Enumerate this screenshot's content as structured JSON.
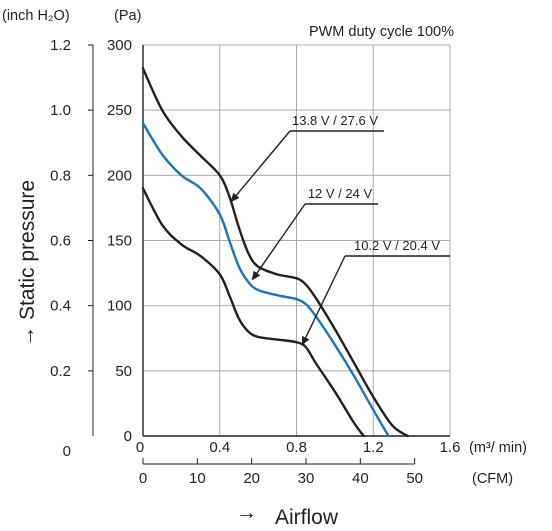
{
  "chart_data": {
    "type": "line",
    "title": "PWM duty cycle 100%",
    "x_axis": {
      "primary_unit": "(m³/ min)",
      "primary_ticks": [
        "0",
        "0.4",
        "0.8",
        "1.2",
        "1.6"
      ],
      "primary_range": [
        0,
        1.6
      ],
      "secondary_unit": "(CFM)",
      "secondary_ticks": [
        "0",
        "10",
        "20",
        "30",
        "40",
        "50"
      ],
      "label": "Airflow",
      "label_arrow": "→"
    },
    "y_axis": {
      "primary_unit": "(Pa)",
      "primary_ticks": [
        "0",
        "50",
        "100",
        "150",
        "200",
        "250",
        "300"
      ],
      "primary_range": [
        0,
        300
      ],
      "secondary_unit": "(inch H₂O)",
      "secondary_ticks": [
        "0",
        "0.2",
        "0.4",
        "0.6",
        "0.8",
        "1.0",
        "1.2"
      ],
      "label": "Static pressure",
      "label_arrow": "→"
    },
    "grid": true,
    "series": [
      {
        "name": "13.8 V / 27.6 V",
        "color": "#231f20",
        "points": [
          [
            0,
            282
          ],
          [
            0.1,
            250
          ],
          [
            0.2,
            230
          ],
          [
            0.3,
            215
          ],
          [
            0.4,
            200
          ],
          [
            0.45,
            184
          ],
          [
            0.5,
            160
          ],
          [
            0.55,
            140
          ],
          [
            0.6,
            130
          ],
          [
            0.7,
            124
          ],
          [
            0.8,
            121
          ],
          [
            0.85,
            116
          ],
          [
            0.9,
            106
          ],
          [
            1.0,
            82
          ],
          [
            1.1,
            56
          ],
          [
            1.2,
            30
          ],
          [
            1.3,
            8
          ],
          [
            1.38,
            0
          ]
        ]
      },
      {
        "name": "12 V / 24 V",
        "color": "#1a75bb",
        "points": [
          [
            0,
            240
          ],
          [
            0.1,
            216
          ],
          [
            0.2,
            200
          ],
          [
            0.3,
            190
          ],
          [
            0.4,
            170
          ],
          [
            0.45,
            150
          ],
          [
            0.5,
            130
          ],
          [
            0.55,
            118
          ],
          [
            0.6,
            112
          ],
          [
            0.7,
            108
          ],
          [
            0.8,
            105
          ],
          [
            0.85,
            101
          ],
          [
            0.9,
            92
          ],
          [
            1.0,
            70
          ],
          [
            1.1,
            46
          ],
          [
            1.2,
            20
          ],
          [
            1.28,
            0
          ]
        ]
      },
      {
        "name": "10.2 V / 20.4 V",
        "color": "#231f20",
        "points": [
          [
            0,
            190
          ],
          [
            0.1,
            162
          ],
          [
            0.2,
            147
          ],
          [
            0.3,
            138
          ],
          [
            0.4,
            124
          ],
          [
            0.45,
            108
          ],
          [
            0.5,
            90
          ],
          [
            0.55,
            80
          ],
          [
            0.6,
            76
          ],
          [
            0.7,
            74
          ],
          [
            0.8,
            72
          ],
          [
            0.85,
            68
          ],
          [
            0.9,
            56
          ],
          [
            1.0,
            34
          ],
          [
            1.1,
            10
          ],
          [
            1.15,
            0
          ]
        ]
      }
    ],
    "annotations": [
      {
        "series": 0,
        "text": "13.8 V / 27.6 V",
        "point": [
          0.46,
          180
        ]
      },
      {
        "series": 1,
        "text": "12 V / 24 V",
        "point": [
          0.57,
          120
        ]
      },
      {
        "series": 2,
        "text": "10.2 V / 20.4 V",
        "point": [
          0.83,
          70
        ]
      }
    ]
  }
}
